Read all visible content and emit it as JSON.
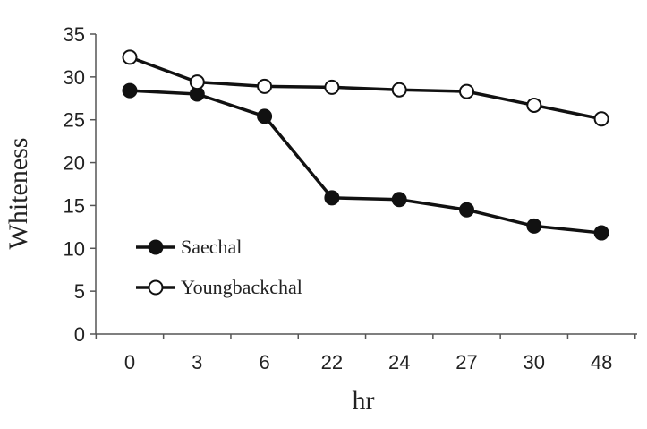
{
  "chart_data": {
    "type": "line",
    "title": "",
    "xlabel": "hr",
    "ylabel": "Whiteness",
    "categories": [
      "0",
      "3",
      "6",
      "22",
      "24",
      "27",
      "30",
      "48"
    ],
    "ylim": [
      0,
      35
    ],
    "yticks": [
      0,
      5,
      10,
      15,
      20,
      25,
      30,
      35
    ],
    "grid": false,
    "legend_position": "lower-left",
    "series": [
      {
        "name": "Saechal",
        "marker": "filled-circle",
        "color": "#111111",
        "values": [
          28.4,
          28.0,
          25.4,
          15.9,
          15.7,
          14.5,
          12.6,
          11.8
        ]
      },
      {
        "name": "Youngbackchal",
        "marker": "open-circle",
        "color": "#111111",
        "values": [
          32.3,
          29.4,
          28.9,
          28.8,
          28.5,
          28.3,
          26.7,
          25.1
        ]
      }
    ]
  }
}
